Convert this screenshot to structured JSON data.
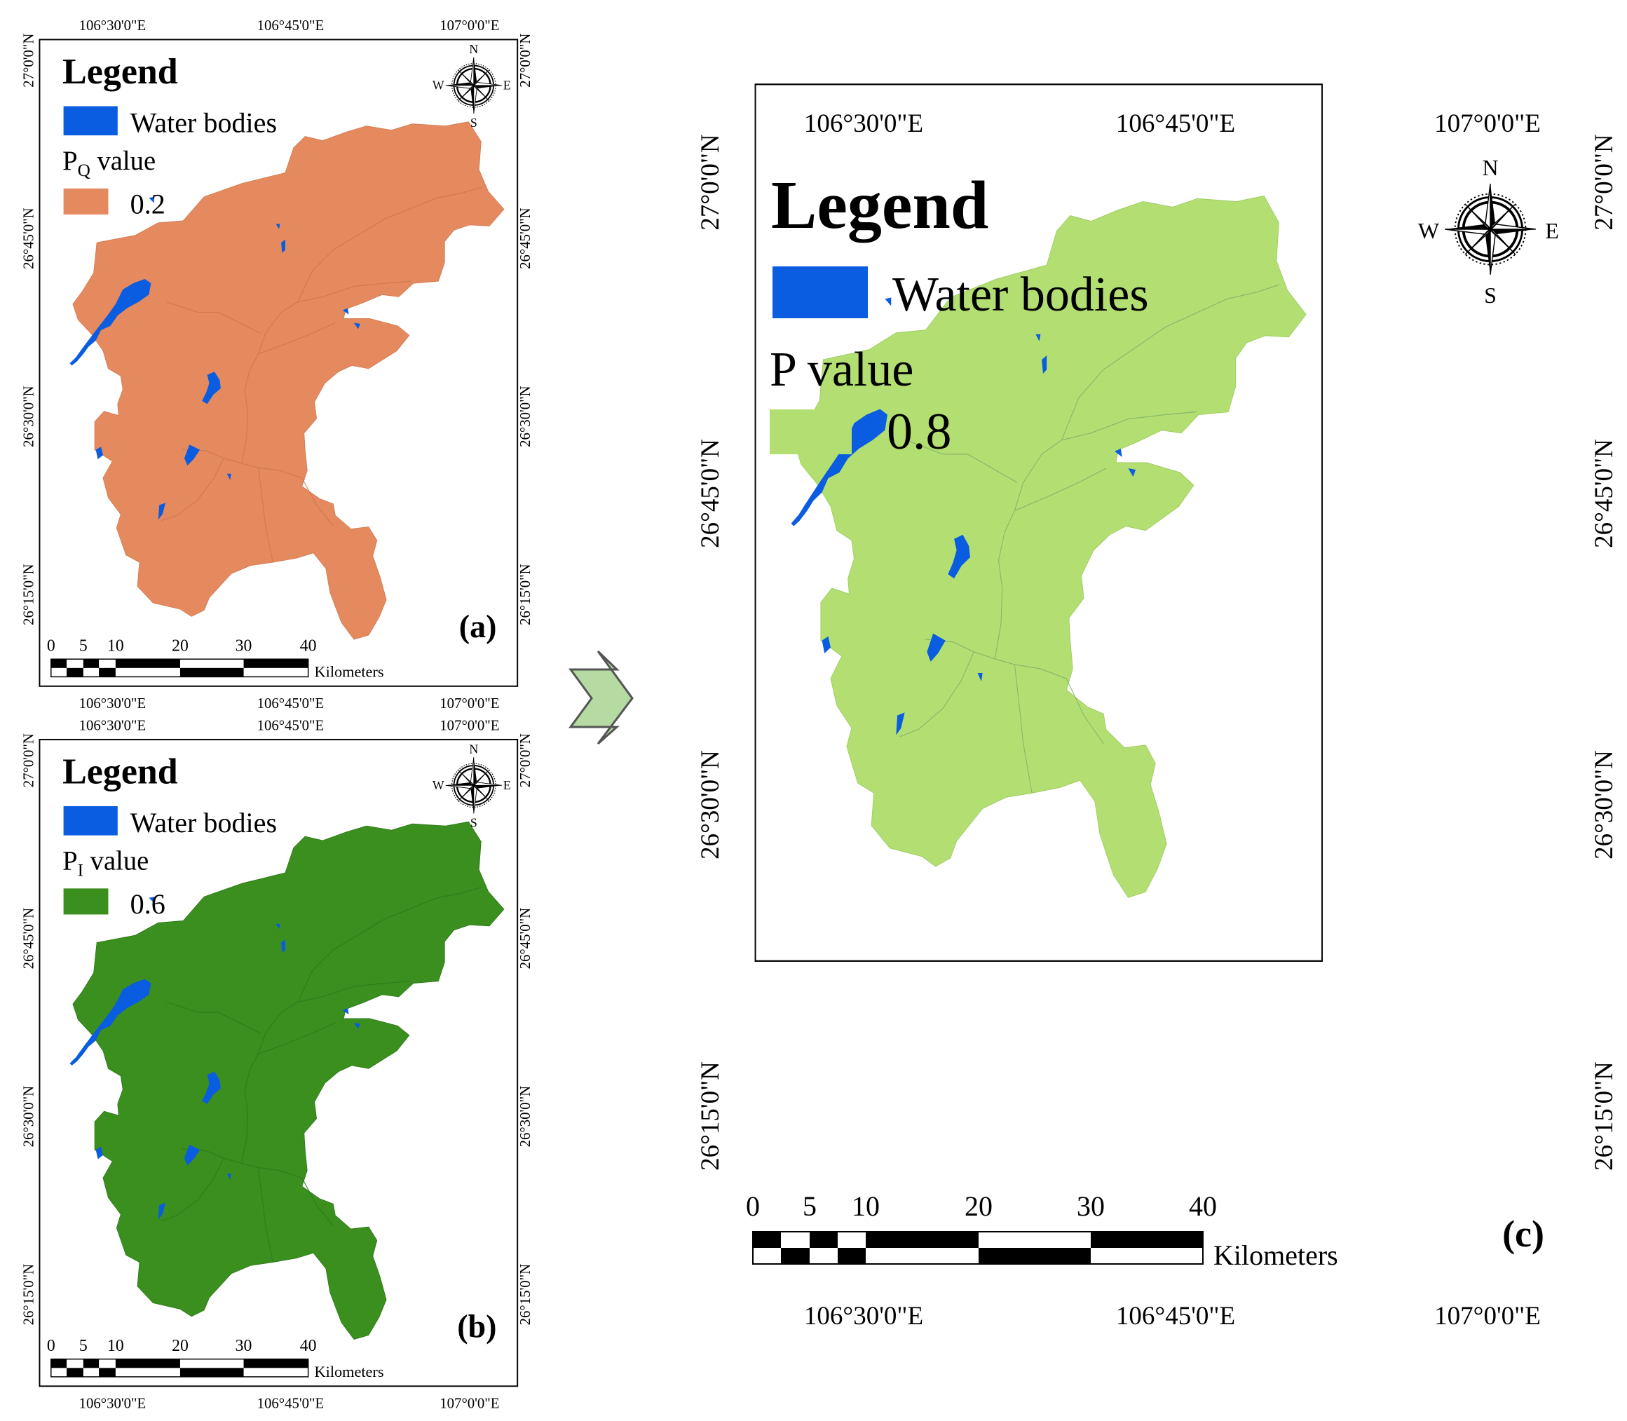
{
  "colors": {
    "water": "#0a5ce0",
    "pq_fill": "#e58a5e",
    "pi_fill": "#3a8f1f",
    "p_fill": "#b3df72",
    "arrow_fill": "#b5dba2"
  },
  "panels": {
    "a": {
      "label": "(a)",
      "legend_title": "Legend",
      "water_label": "Water bodies",
      "value_label_main": "P",
      "value_label_sub": "Q",
      "value_label_rest": " value",
      "value": "0.2",
      "fill_color": "#e58a5e",
      "lon_labels": [
        "106°30'0\"E",
        "106°45'0\"E",
        "107°0'0\"E"
      ],
      "lat_labels": [
        "27°0'0\"N",
        "26°45'0\"N",
        "26°30'0\"N",
        "26°15'0\"N"
      ],
      "scale_ticks": [
        "0",
        "5",
        "10",
        "20",
        "30",
        "40"
      ],
      "scale_unit": "Kilometers",
      "compass": [
        "N",
        "E",
        "S",
        "W"
      ]
    },
    "b": {
      "label": "(b)",
      "legend_title": "Legend",
      "water_label": "Water bodies",
      "value_label_main": "P",
      "value_label_sub": "I",
      "value_label_rest": " value",
      "value": "0.6",
      "fill_color": "#3a8f1f",
      "lon_labels": [
        "106°30'0\"E",
        "106°45'0\"E",
        "107°0'0\"E"
      ],
      "lat_labels": [
        "27°0'0\"N",
        "26°45'0\"N",
        "26°30'0\"N",
        "26°15'0\"N"
      ],
      "scale_ticks": [
        "0",
        "5",
        "10",
        "20",
        "30",
        "40"
      ],
      "scale_unit": "Kilometers",
      "compass": [
        "N",
        "E",
        "S",
        "W"
      ]
    },
    "c": {
      "label": "(c)",
      "legend_title": "Legend",
      "water_label": "Water bodies",
      "value_label_main": "P",
      "value_label_sub": "",
      "value_label_rest": " value",
      "value": "0.8",
      "fill_color": "#b3df72",
      "lon_labels": [
        "106°30'0\"E",
        "106°45'0\"E",
        "107°0'0\"E"
      ],
      "lat_labels": [
        "27°0'0\"N",
        "26°45'0\"N",
        "26°30'0\"N",
        "26°15'0\"N"
      ],
      "scale_ticks": [
        "0",
        "5",
        "10",
        "20",
        "30",
        "40"
      ],
      "scale_unit": "Kilometers",
      "compass": [
        "N",
        "E",
        "S",
        "W"
      ]
    }
  }
}
